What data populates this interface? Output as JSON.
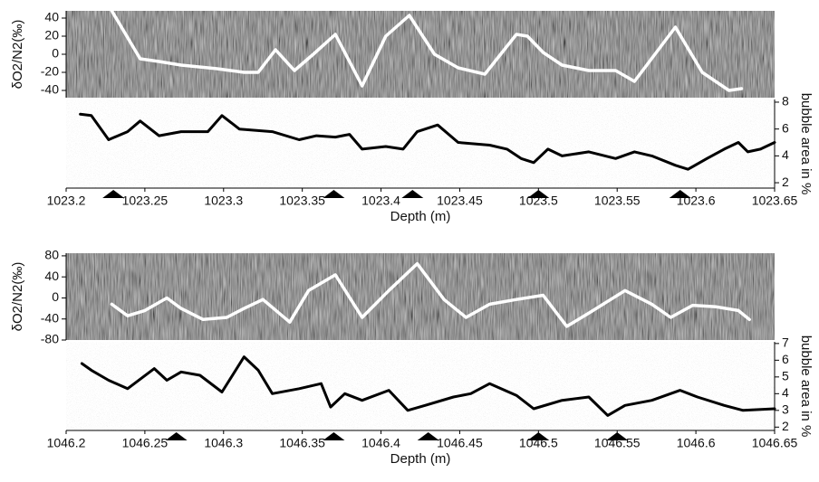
{
  "chart_data": [
    {
      "type": "line",
      "ylabel": "δO2/N2(‰)",
      "y2label": "bubble area in %",
      "xlabel": "Depth (m)",
      "xlim": [
        1023.2,
        1023.65
      ],
      "xticks": [
        1023.2,
        1023.25,
        1023.3,
        1023.35,
        1023.4,
        1023.45,
        1023.5,
        1023.55,
        1023.6,
        1023.65
      ],
      "ylim": [
        -48,
        48
      ],
      "yticks": [
        -40,
        -20,
        0,
        20,
        40
      ],
      "y2lim": [
        1.6,
        8.2
      ],
      "y2ticks": [
        2,
        4,
        6,
        8
      ],
      "markers": [
        1023.23,
        1023.37,
        1023.42,
        1023.5,
        1023.59
      ],
      "series": [
        {
          "color": "#ffffff",
          "x": [
            1023.229,
            1023.247,
            1023.259,
            1023.273,
            1023.296,
            1023.313,
            1023.322,
            1023.333,
            1023.345,
            1023.357,
            1023.371,
            1023.388,
            1023.403,
            1023.418,
            1023.434,
            1023.449,
            1023.466,
            1023.486,
            1023.493,
            1023.503,
            1023.515,
            1023.532,
            1023.549,
            1023.561,
            1023.587,
            1023.604,
            1023.621,
            1023.629
          ],
          "values": [
            48,
            -5,
            -8,
            -12,
            -16,
            -20,
            -20,
            5,
            -18,
            0,
            22,
            -35,
            20,
            43,
            0,
            -15,
            -22,
            22,
            20,
            2,
            -12,
            -18,
            -18,
            -30,
            30,
            -20,
            -40,
            -38
          ]
        },
        {
          "color": "#000000",
          "axis": "y2",
          "x": [
            1023.209,
            1023.216,
            1023.227,
            1023.239,
            1023.247,
            1023.259,
            1023.273,
            1023.29,
            1023.299,
            1023.31,
            1023.331,
            1023.348,
            1023.359,
            1023.371,
            1023.38,
            1023.388,
            1023.403,
            1023.414,
            1023.423,
            1023.436,
            1023.449,
            1023.469,
            1023.48,
            1023.489,
            1023.497,
            1023.506,
            1023.515,
            1023.532,
            1023.549,
            1023.561,
            1023.572,
            1023.587,
            1023.595,
            1023.607,
            1023.618,
            1023.627,
            1023.633,
            1023.641,
            1023.65
          ],
          "values": [
            7.1,
            7.0,
            5.2,
            5.8,
            6.6,
            5.5,
            5.8,
            5.8,
            7.0,
            6.0,
            5.8,
            5.2,
            5.5,
            5.4,
            5.6,
            4.5,
            4.7,
            4.5,
            5.8,
            6.3,
            5.0,
            4.8,
            4.5,
            3.8,
            3.5,
            4.5,
            4.0,
            4.3,
            3.8,
            4.3,
            4.0,
            3.3,
            3.0,
            3.8,
            4.5,
            5.0,
            4.3,
            4.5,
            5.0
          ]
        }
      ]
    },
    {
      "type": "line",
      "ylabel": "δO2/N2(‰)",
      "y2label": "bubble area in %",
      "xlabel": "Depth (m)",
      "xlim": [
        1046.2,
        1046.65
      ],
      "xticks": [
        1046.2,
        1046.25,
        1046.3,
        1046.35,
        1046.4,
        1046.45,
        1046.5,
        1046.55,
        1046.6,
        1046.65
      ],
      "ylim": [
        -80,
        85
      ],
      "yticks": [
        -80,
        -40,
        0,
        40,
        80
      ],
      "y2lim": [
        1.8,
        7.1
      ],
      "y2ticks": [
        2,
        3,
        4,
        5,
        6,
        7
      ],
      "markers": [
        1046.27,
        1046.37,
        1046.43,
        1046.5,
        1046.55
      ],
      "series": [
        {
          "color": "#ffffff",
          "x": [
            1046.229,
            1046.239,
            1046.25,
            1046.264,
            1046.273,
            1046.287,
            1046.302,
            1046.313,
            1046.325,
            1046.342,
            1046.354,
            1046.371,
            1046.388,
            1046.405,
            1046.423,
            1046.44,
            1046.454,
            1046.469,
            1046.486,
            1046.503,
            1046.518,
            1046.532,
            1046.555,
            1046.572,
            1046.584,
            1046.598,
            1046.613,
            1046.627,
            1046.634
          ],
          "values": [
            -12,
            -34,
            -24,
            0,
            -20,
            -41,
            -37,
            -20,
            -3,
            -46,
            14,
            44,
            -37,
            14,
            65,
            -3,
            -37,
            -12,
            -3,
            5,
            -54,
            -29,
            14,
            -12,
            -37,
            -14,
            -17,
            -24,
            -41
          ]
        },
        {
          "color": "#000000",
          "axis": "y2",
          "x": [
            1046.21,
            1046.216,
            1046.227,
            1046.239,
            1046.256,
            1046.264,
            1046.273,
            1046.285,
            1046.299,
            1046.313,
            1046.322,
            1046.331,
            1046.348,
            1046.362,
            1046.368,
            1046.377,
            1046.388,
            1046.405,
            1046.417,
            1046.428,
            1046.446,
            1046.457,
            1046.469,
            1046.486,
            1046.497,
            1046.515,
            1046.532,
            1046.544,
            1046.555,
            1046.572,
            1046.59,
            1046.601,
            1046.618,
            1046.63,
            1046.65
          ],
          "values": [
            5.8,
            5.4,
            4.8,
            4.3,
            5.5,
            4.8,
            5.3,
            5.1,
            4.1,
            6.2,
            5.4,
            4.0,
            4.3,
            4.6,
            3.2,
            4.0,
            3.6,
            4.2,
            3.0,
            3.3,
            3.8,
            4.0,
            4.6,
            3.9,
            3.1,
            3.6,
            3.8,
            2.7,
            3.3,
            3.6,
            4.2,
            3.8,
            3.3,
            3.0,
            3.1
          ]
        }
      ]
    }
  ]
}
